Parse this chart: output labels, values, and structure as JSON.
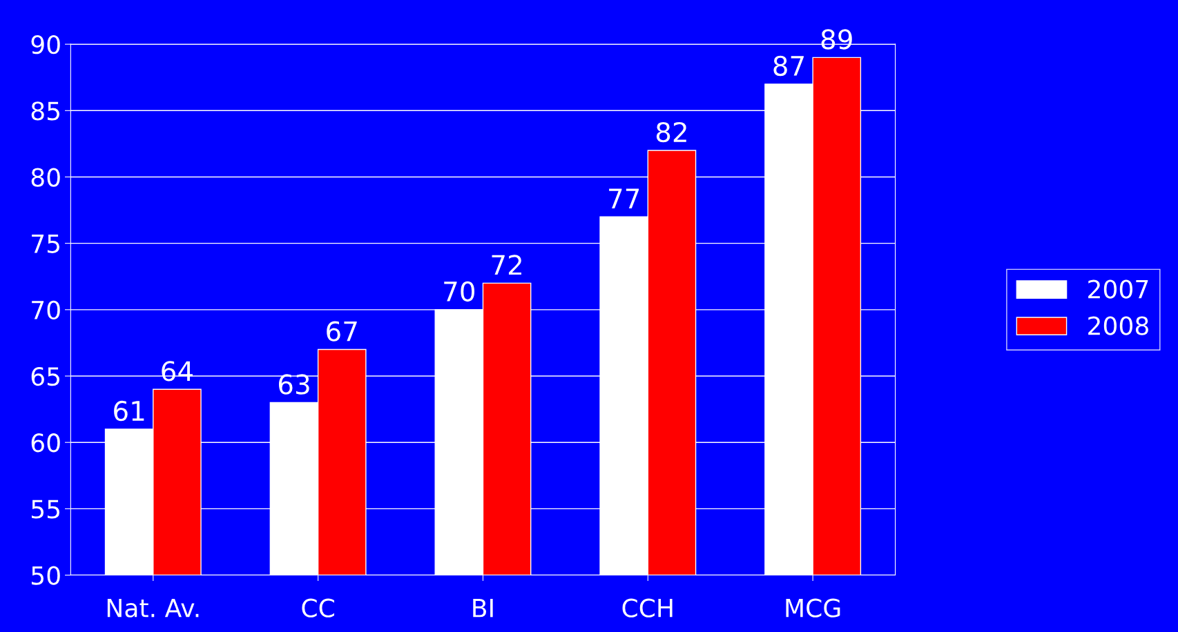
{
  "chart_data": {
    "type": "bar",
    "categories": [
      "Nat. Av.",
      "CC",
      "BI",
      "CCH",
      "MCG"
    ],
    "series": [
      {
        "name": "2007",
        "color": "#ffffff",
        "values": [
          61,
          63,
          70,
          77,
          87
        ]
      },
      {
        "name": "2008",
        "color": "#ff0000",
        "values": [
          64,
          67,
          72,
          82,
          89
        ]
      }
    ],
    "ylim": [
      50,
      90
    ],
    "yticks": [
      50,
      55,
      60,
      65,
      70,
      75,
      80,
      85,
      90
    ],
    "grid": "y",
    "legend": "right",
    "data_labels": true
  }
}
